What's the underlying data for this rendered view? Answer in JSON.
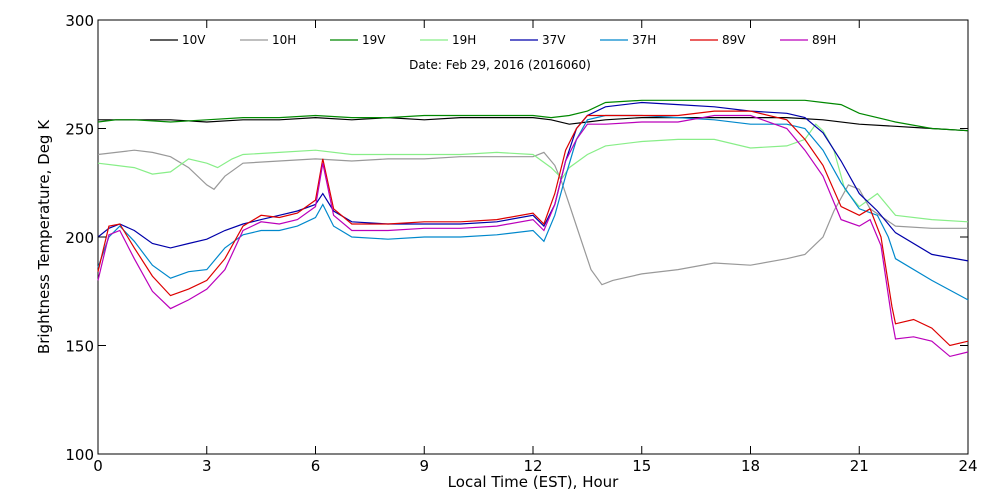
{
  "chart_data": {
    "type": "line",
    "title": "",
    "annotation": "Date: Feb 29, 2016 (2016060)",
    "xlabel": "Local Time (EST), Hour",
    "ylabel": "Brightness Temperature, Deg K",
    "xlim": [
      0,
      24
    ],
    "ylim": [
      100,
      300
    ],
    "xticks": [
      0,
      3,
      6,
      9,
      12,
      15,
      18,
      21,
      24
    ],
    "yticks": [
      100,
      150,
      200,
      250,
      300
    ],
    "grid": false,
    "legend_position": "top",
    "series": [
      {
        "name": "10V",
        "color": "#000000",
        "x": [
          0,
          0.5,
          1,
          2,
          3,
          4,
          5,
          6,
          7,
          8,
          9,
          10,
          11,
          12,
          12.5,
          13,
          13.5,
          14,
          15,
          16,
          17,
          18,
          19,
          20,
          21,
          22,
          23,
          24
        ],
        "y": [
          254,
          254,
          254,
          254,
          253,
          254,
          254,
          255,
          254,
          255,
          254,
          255,
          255,
          255,
          254,
          252,
          253,
          254,
          255,
          255,
          255,
          255,
          255,
          254,
          252,
          251,
          250,
          249
        ]
      },
      {
        "name": "10H",
        "color": "#999999",
        "x": [
          0,
          0.5,
          1,
          1.5,
          2,
          2.5,
          3,
          3.2,
          3.5,
          4,
          5,
          6,
          7,
          8,
          9,
          10,
          11,
          12,
          12.3,
          12.6,
          12.8,
          13,
          13.3,
          13.6,
          13.9,
          14.2,
          15,
          16,
          17,
          18,
          19,
          19.5,
          20,
          20.3,
          20.7,
          21,
          21.3,
          22,
          23,
          24
        ],
        "y": [
          238,
          239,
          240,
          239,
          237,
          232,
          224,
          222,
          228,
          234,
          235,
          236,
          235,
          236,
          236,
          237,
          237,
          237,
          239,
          233,
          225,
          215,
          200,
          185,
          178,
          180,
          183,
          185,
          188,
          187,
          190,
          192,
          200,
          212,
          224,
          222,
          213,
          205,
          204,
          204
        ]
      },
      {
        "name": "19V",
        "color": "#008800",
        "x": [
          0,
          0.5,
          1,
          2,
          3,
          4,
          5,
          6,
          7,
          8,
          9,
          10,
          11,
          12,
          12.5,
          13,
          13.5,
          14,
          15,
          16,
          17,
          18,
          19,
          19.5,
          20,
          20.5,
          21,
          22,
          23,
          24
        ],
        "y": [
          253,
          254,
          254,
          253,
          254,
          255,
          255,
          256,
          255,
          255,
          256,
          256,
          256,
          256,
          255,
          256,
          258,
          262,
          263,
          263,
          263,
          263,
          263,
          263,
          262,
          261,
          257,
          253,
          250,
          249
        ]
      },
      {
        "name": "19H",
        "color": "#88ee88",
        "x": [
          0,
          0.5,
          1,
          1.5,
          2,
          2.5,
          3,
          3.3,
          3.7,
          4,
          5,
          6,
          7,
          8,
          9,
          10,
          11,
          12,
          12.5,
          12.8,
          13,
          13.5,
          14,
          15,
          16,
          17,
          18,
          19,
          19.5,
          19.8,
          20,
          20.3,
          20.6,
          21,
          21.5,
          22,
          23,
          24
        ],
        "y": [
          234,
          233,
          232,
          229,
          230,
          236,
          234,
          232,
          236,
          238,
          239,
          240,
          238,
          238,
          238,
          238,
          239,
          238,
          232,
          227,
          232,
          238,
          242,
          244,
          245,
          245,
          241,
          242,
          245,
          252,
          249,
          240,
          222,
          214,
          220,
          210,
          208,
          207
        ]
      },
      {
        "name": "37V",
        "color": "#0000aa",
        "x": [
          0,
          0.3,
          0.6,
          1,
          1.5,
          2,
          2.5,
          3,
          3.5,
          4,
          4.5,
          5,
          5.5,
          6,
          6.2,
          6.5,
          7,
          8,
          9,
          10,
          11,
          12,
          12.3,
          12.6,
          12.9,
          13.2,
          13.5,
          14,
          15,
          16,
          17,
          18,
          19,
          19.5,
          20,
          20.5,
          21,
          21.5,
          22,
          23,
          24
        ],
        "y": [
          200,
          204,
          206,
          203,
          197,
          195,
          197,
          199,
          203,
          206,
          208,
          210,
          212,
          215,
          220,
          212,
          207,
          206,
          206,
          206,
          207,
          210,
          205,
          215,
          235,
          250,
          256,
          260,
          262,
          261,
          260,
          258,
          257,
          255,
          248,
          235,
          220,
          212,
          202,
          192,
          189
        ]
      },
      {
        "name": "37H",
        "color": "#0088cc",
        "x": [
          0,
          0.3,
          0.6,
          1,
          1.5,
          2,
          2.5,
          3,
          3.5,
          4,
          4.5,
          5,
          5.5,
          6,
          6.2,
          6.5,
          7,
          8,
          9,
          10,
          11,
          12,
          12.3,
          12.6,
          12.9,
          13.2,
          13.5,
          14,
          15,
          16,
          17,
          18,
          19,
          19.5,
          20,
          20.5,
          21,
          21.5,
          21.8,
          22,
          23,
          24
        ],
        "y": [
          186,
          200,
          205,
          198,
          187,
          181,
          184,
          185,
          195,
          201,
          203,
          203,
          205,
          209,
          215,
          205,
          200,
          199,
          200,
          200,
          201,
          203,
          198,
          210,
          228,
          245,
          254,
          256,
          256,
          255,
          254,
          252,
          252,
          250,
          240,
          225,
          213,
          210,
          200,
          190,
          180,
          171
        ]
      },
      {
        "name": "89V",
        "color": "#dd0000",
        "x": [
          0,
          0.3,
          0.6,
          1,
          1.5,
          2,
          2.5,
          3,
          3.5,
          4,
          4.5,
          5,
          5.5,
          6,
          6.2,
          6.5,
          7,
          8,
          9,
          10,
          11,
          12,
          12.3,
          12.6,
          12.9,
          13.2,
          13.5,
          14,
          15,
          16,
          17,
          18,
          19,
          19.5,
          20,
          20.5,
          21,
          21.3,
          21.6,
          21.9,
          22,
          22.5,
          23,
          23.5,
          24
        ],
        "y": [
          184,
          205,
          206,
          195,
          182,
          173,
          176,
          180,
          190,
          205,
          210,
          209,
          211,
          217,
          236,
          213,
          206,
          206,
          207,
          207,
          208,
          211,
          206,
          220,
          240,
          250,
          256,
          256,
          256,
          256,
          258,
          258,
          254,
          245,
          233,
          214,
          210,
          213,
          200,
          168,
          160,
          162,
          158,
          150,
          152
        ]
      },
      {
        "name": "89H",
        "color": "#bb00bb",
        "x": [
          0,
          0.3,
          0.6,
          1,
          1.5,
          2,
          2.5,
          3,
          3.5,
          4,
          4.5,
          5,
          5.5,
          6,
          6.2,
          6.5,
          7,
          8,
          9,
          10,
          11,
          12,
          12.3,
          12.6,
          12.9,
          13.2,
          13.5,
          14,
          15,
          16,
          17,
          18,
          19,
          19.5,
          20,
          20.5,
          21,
          21.3,
          21.6,
          21.9,
          22,
          22.5,
          23,
          23.5,
          24
        ],
        "y": [
          180,
          201,
          203,
          190,
          175,
          167,
          171,
          176,
          185,
          203,
          207,
          206,
          208,
          214,
          234,
          210,
          203,
          203,
          204,
          204,
          205,
          208,
          203,
          215,
          235,
          245,
          252,
          252,
          253,
          253,
          256,
          256,
          250,
          240,
          228,
          208,
          205,
          208,
          196,
          162,
          153,
          154,
          152,
          145,
          147
        ]
      }
    ]
  }
}
